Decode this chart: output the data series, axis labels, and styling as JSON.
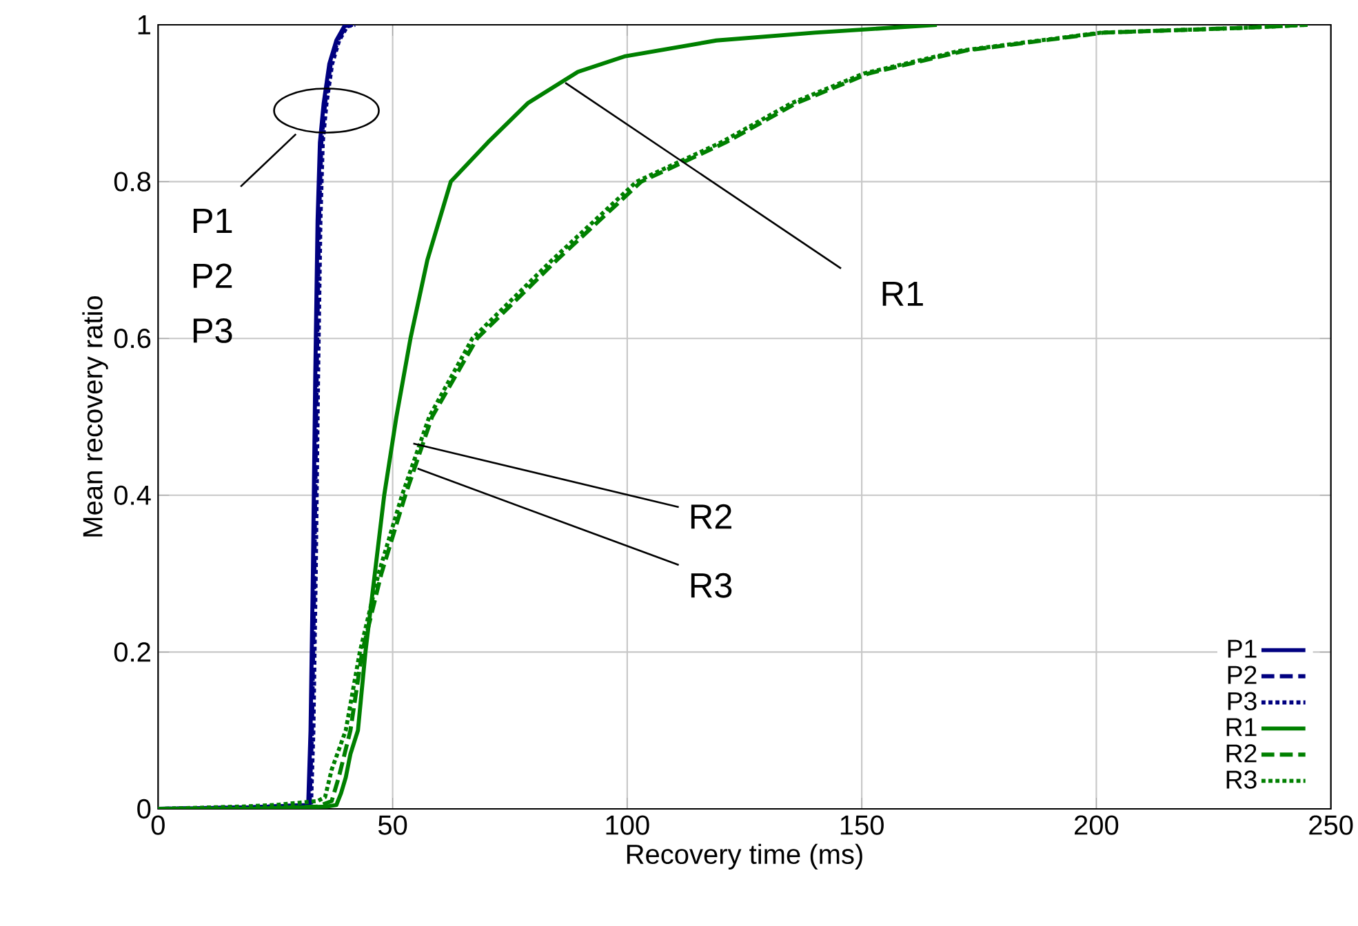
{
  "chart_data": {
    "type": "line",
    "xlabel": "Recovery time (ms)",
    "ylabel": "Mean recovery ratio",
    "xlim": [
      0,
      250
    ],
    "ylim": [
      0,
      1
    ],
    "xticks": [
      0,
      50,
      100,
      150,
      200,
      250
    ],
    "yticks": [
      0,
      0.2,
      0.4,
      0.6,
      0.8,
      1
    ],
    "grid": true,
    "legend": "bottom right",
    "marker": "none",
    "series": [
      {
        "name": "P1",
        "color": "#000080",
        "line_style": "solid",
        "x": [
          0,
          20,
          32,
          32.5,
          33,
          33.5,
          34,
          34.5,
          35.3,
          36.5,
          38,
          39.7,
          41
        ],
        "values": [
          0,
          0.002,
          0.005,
          0.1,
          0.3,
          0.55,
          0.75,
          0.85,
          0.9,
          0.95,
          0.98,
          0.998,
          1
        ]
      },
      {
        "name": "P2",
        "color": "#000080",
        "line_style": "dashed",
        "x": [
          0,
          20,
          32.3,
          32.8,
          33.3,
          33.8,
          34.3,
          34.8,
          35.6,
          36.8,
          38.3,
          40,
          41.5
        ],
        "values": [
          0,
          0.002,
          0.005,
          0.1,
          0.3,
          0.55,
          0.75,
          0.85,
          0.9,
          0.95,
          0.98,
          0.998,
          1
        ]
      },
      {
        "name": "P3",
        "color": "#000080",
        "line_style": "dotted",
        "x": [
          0,
          20,
          32.6,
          33.1,
          33.6,
          34.1,
          34.6,
          35.1,
          35.9,
          37.1,
          38.6,
          40.3,
          42
        ],
        "values": [
          0,
          0.002,
          0.005,
          0.1,
          0.3,
          0.55,
          0.75,
          0.85,
          0.9,
          0.95,
          0.98,
          0.998,
          1
        ]
      },
      {
        "name": "R1",
        "color": "#008000",
        "line_style": "solid",
        "x": [
          0,
          20,
          36,
          38,
          39,
          40,
          41,
          42.6,
          44.2,
          46.2,
          48.2,
          50.8,
          53.8,
          57.4,
          62.4,
          70.3,
          78.8,
          89.5,
          99.6,
          119,
          140,
          166
        ],
        "values": [
          0,
          0,
          0.003,
          0.005,
          0.02,
          0.04,
          0.07,
          0.1,
          0.2,
          0.3,
          0.4,
          0.5,
          0.6,
          0.7,
          0.8,
          0.85,
          0.9,
          0.94,
          0.96,
          0.98,
          0.99,
          1
        ]
      },
      {
        "name": "R2",
        "color": "#008000",
        "line_style": "dashed",
        "x": [
          0,
          20,
          34,
          37,
          38.5,
          41,
          43.5,
          47.6,
          52.7,
          58.4,
          68,
          85,
          103,
          121,
          136,
          151.5,
          172,
          201.5,
          231,
          245
        ],
        "values": [
          0,
          0,
          0.003,
          0.01,
          0.04,
          0.1,
          0.2,
          0.3,
          0.4,
          0.5,
          0.6,
          0.7,
          0.8,
          0.85,
          0.9,
          0.938,
          0.967,
          0.99,
          0.996,
          1
        ]
      },
      {
        "name": "R3",
        "color": "#008000",
        "line_style": "dotted",
        "x": [
          0,
          18,
          25,
          34,
          35.6,
          37,
          40,
          43,
          47,
          52,
          57.8,
          67,
          84,
          102,
          120,
          135,
          150.5,
          171,
          201,
          231,
          245
        ],
        "values": [
          0,
          0.003,
          0.005,
          0.01,
          0.015,
          0.05,
          0.1,
          0.2,
          0.3,
          0.4,
          0.5,
          0.6,
          0.7,
          0.8,
          0.85,
          0.9,
          0.938,
          0.967,
          0.99,
          0.996,
          1
        ]
      }
    ],
    "annotations": [
      "P1",
      "P2",
      "P3",
      {
        "text": "R1",
        "x": 86.8,
        "y": 0.926
      },
      {
        "text": "R2",
        "x": 54.4,
        "y": 0.466
      },
      {
        "text": "R3",
        "x": 55.3,
        "y": 0.434
      }
    ]
  }
}
